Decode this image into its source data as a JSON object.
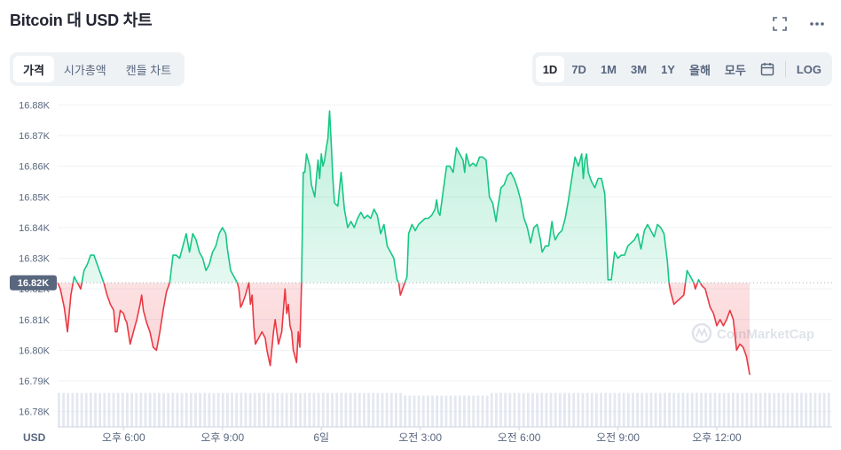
{
  "header": {
    "title": "Bitcoin 대 USD 차트"
  },
  "icons": {
    "fullscreen": "fullscreen-icon",
    "more": "more-icon",
    "calendar": "calendar-icon"
  },
  "tabs_left": [
    {
      "label": "가격",
      "active": true
    },
    {
      "label": "시가총액",
      "active": false
    },
    {
      "label": "캔들 차트",
      "active": false
    }
  ],
  "ranges": [
    {
      "label": "1D",
      "active": true
    },
    {
      "label": "7D",
      "active": false
    },
    {
      "label": "1M",
      "active": false
    },
    {
      "label": "3M",
      "active": false
    },
    {
      "label": "1Y",
      "active": false
    },
    {
      "label": "올해",
      "active": false
    },
    {
      "label": "모두",
      "active": false
    }
  ],
  "log_label": "LOG",
  "watermark": "CoinMarketCap",
  "colors": {
    "up": "#16c784",
    "down": "#ea3943",
    "grid": "#eff2f5",
    "text": "#58667e",
    "current_badge": "#58667e"
  },
  "chart_data": {
    "type": "line",
    "currency_label": "USD",
    "ylim": [
      16775,
      16883
    ],
    "yticks": [
      "16.88K",
      "16.87K",
      "16.86K",
      "16.85K",
      "16.84K",
      "16.83K",
      "16.82K",
      "16.81K",
      "16.80K",
      "16.79K",
      "16.78K"
    ],
    "ytick_values": [
      16880,
      16870,
      16860,
      16850,
      16840,
      16830,
      16820,
      16810,
      16800,
      16790,
      16780
    ],
    "baseline_label": "16.82K",
    "baseline": 16822,
    "x_labels": [
      "오후 6:00",
      "오후 9:00",
      "6일",
      "오전 3:00",
      "오전 6:00",
      "오전 9:00",
      "오후 12:00"
    ],
    "x_label_hours": [
      2,
      5,
      8,
      11,
      14,
      17,
      20
    ],
    "x_range_hours": [
      0,
      23.5
    ],
    "price_series": [
      [
        0.0,
        16822
      ],
      [
        0.08,
        16820
      ],
      [
        0.2,
        16814
      ],
      [
        0.3,
        16806
      ],
      [
        0.4,
        16818
      ],
      [
        0.5,
        16824
      ],
      [
        0.6,
        16822
      ],
      [
        0.7,
        16820
      ],
      [
        0.8,
        16826
      ],
      [
        0.9,
        16828
      ],
      [
        1.0,
        16831
      ],
      [
        1.1,
        16831
      ],
      [
        1.2,
        16828
      ],
      [
        1.3,
        16825
      ],
      [
        1.4,
        16822
      ],
      [
        1.5,
        16818
      ],
      [
        1.6,
        16815
      ],
      [
        1.7,
        16813
      ],
      [
        1.75,
        16806
      ],
      [
        1.8,
        16806
      ],
      [
        1.9,
        16813
      ],
      [
        2.0,
        16812
      ],
      [
        2.05,
        16810
      ],
      [
        2.1,
        16809
      ],
      [
        2.2,
        16802
      ],
      [
        2.3,
        16806
      ],
      [
        2.4,
        16810
      ],
      [
        2.5,
        16815
      ],
      [
        2.55,
        16818
      ],
      [
        2.6,
        16813
      ],
      [
        2.7,
        16809
      ],
      [
        2.8,
        16806
      ],
      [
        2.9,
        16801
      ],
      [
        3.0,
        16800
      ],
      [
        3.1,
        16806
      ],
      [
        3.2,
        16813
      ],
      [
        3.3,
        16819
      ],
      [
        3.4,
        16822
      ],
      [
        3.5,
        16831
      ],
      [
        3.6,
        16831
      ],
      [
        3.7,
        16830
      ],
      [
        3.8,
        16834
      ],
      [
        3.9,
        16838
      ],
      [
        4.0,
        16832
      ],
      [
        4.1,
        16838
      ],
      [
        4.2,
        16836
      ],
      [
        4.3,
        16832
      ],
      [
        4.4,
        16830
      ],
      [
        4.5,
        16826
      ],
      [
        4.6,
        16828
      ],
      [
        4.7,
        16832
      ],
      [
        4.8,
        16834
      ],
      [
        4.9,
        16838
      ],
      [
        5.0,
        16840
      ],
      [
        5.1,
        16838
      ],
      [
        5.15,
        16833
      ],
      [
        5.25,
        16826
      ],
      [
        5.35,
        16824
      ],
      [
        5.45,
        16822
      ],
      [
        5.5,
        16820
      ],
      [
        5.55,
        16814
      ],
      [
        5.6,
        16815
      ],
      [
        5.7,
        16818
      ],
      [
        5.8,
        16822
      ],
      [
        5.85,
        16815
      ],
      [
        5.9,
        16818
      ],
      [
        5.95,
        16808
      ],
      [
        6.0,
        16802
      ],
      [
        6.1,
        16804
      ],
      [
        6.2,
        16806
      ],
      [
        6.3,
        16804
      ],
      [
        6.35,
        16800
      ],
      [
        6.45,
        16795
      ],
      [
        6.55,
        16806
      ],
      [
        6.6,
        16810
      ],
      [
        6.7,
        16802
      ],
      [
        6.8,
        16806
      ],
      [
        6.9,
        16820
      ],
      [
        6.95,
        16812
      ],
      [
        7.0,
        16815
      ],
      [
        7.05,
        16808
      ],
      [
        7.1,
        16806
      ],
      [
        7.15,
        16800
      ],
      [
        7.2,
        16798
      ],
      [
        7.25,
        16796
      ],
      [
        7.3,
        16806
      ],
      [
        7.35,
        16801
      ],
      [
        7.4,
        16822
      ],
      [
        7.45,
        16858
      ],
      [
        7.5,
        16858
      ],
      [
        7.55,
        16864
      ],
      [
        7.6,
        16862
      ],
      [
        7.65,
        16860
      ],
      [
        7.7,
        16854
      ],
      [
        7.75,
        16852
      ],
      [
        7.8,
        16850
      ],
      [
        7.85,
        16856
      ],
      [
        7.9,
        16862
      ],
      [
        7.95,
        16856
      ],
      [
        8.0,
        16864
      ],
      [
        8.05,
        16860
      ],
      [
        8.1,
        16862
      ],
      [
        8.15,
        16866
      ],
      [
        8.2,
        16869
      ],
      [
        8.25,
        16878
      ],
      [
        8.3,
        16868
      ],
      [
        8.35,
        16856
      ],
      [
        8.4,
        16848
      ],
      [
        8.5,
        16847
      ],
      [
        8.6,
        16858
      ],
      [
        8.7,
        16846
      ],
      [
        8.8,
        16840
      ],
      [
        8.9,
        16842
      ],
      [
        9.0,
        16840
      ],
      [
        9.1,
        16843
      ],
      [
        9.2,
        16845
      ],
      [
        9.3,
        16843
      ],
      [
        9.4,
        16844
      ],
      [
        9.5,
        16843
      ],
      [
        9.6,
        16846
      ],
      [
        9.7,
        16844
      ],
      [
        9.8,
        16838
      ],
      [
        9.9,
        16841
      ],
      [
        10.0,
        16834
      ],
      [
        10.1,
        16832
      ],
      [
        10.2,
        16830
      ],
      [
        10.3,
        16823
      ],
      [
        10.35,
        16822
      ],
      [
        10.4,
        16818
      ],
      [
        10.5,
        16821
      ],
      [
        10.6,
        16824
      ],
      [
        10.65,
        16838
      ],
      [
        10.75,
        16841
      ],
      [
        10.85,
        16839
      ],
      [
        10.95,
        16841
      ],
      [
        11.05,
        16842
      ],
      [
        11.15,
        16843
      ],
      [
        11.25,
        16843
      ],
      [
        11.35,
        16844
      ],
      [
        11.45,
        16846
      ],
      [
        11.5,
        16849
      ],
      [
        11.55,
        16845
      ],
      [
        11.6,
        16844
      ],
      [
        11.7,
        16852
      ],
      [
        11.8,
        16860
      ],
      [
        11.9,
        16860
      ],
      [
        12.0,
        16858
      ],
      [
        12.1,
        16866
      ],
      [
        12.2,
        16864
      ],
      [
        12.3,
        16862
      ],
      [
        12.35,
        16858
      ],
      [
        12.4,
        16864
      ],
      [
        12.5,
        16860
      ],
      [
        12.6,
        16861
      ],
      [
        12.7,
        16860
      ],
      [
        12.8,
        16863
      ],
      [
        12.9,
        16863
      ],
      [
        13.0,
        16862
      ],
      [
        13.1,
        16850
      ],
      [
        13.2,
        16848
      ],
      [
        13.3,
        16842
      ],
      [
        13.35,
        16846
      ],
      [
        13.45,
        16853
      ],
      [
        13.55,
        16854
      ],
      [
        13.65,
        16857
      ],
      [
        13.75,
        16858
      ],
      [
        13.85,
        16856
      ],
      [
        13.95,
        16853
      ],
      [
        14.05,
        16849
      ],
      [
        14.15,
        16843
      ],
      [
        14.25,
        16840
      ],
      [
        14.35,
        16835
      ],
      [
        14.45,
        16840
      ],
      [
        14.55,
        16841
      ],
      [
        14.65,
        16836
      ],
      [
        14.7,
        16832
      ],
      [
        14.8,
        16834
      ],
      [
        14.9,
        16834
      ],
      [
        15.0,
        16842
      ],
      [
        15.05,
        16838
      ],
      [
        15.1,
        16836
      ],
      [
        15.2,
        16838
      ],
      [
        15.3,
        16839
      ],
      [
        15.4,
        16843
      ],
      [
        15.5,
        16849
      ],
      [
        15.6,
        16856
      ],
      [
        15.7,
        16863
      ],
      [
        15.8,
        16860
      ],
      [
        15.9,
        16864
      ],
      [
        15.95,
        16856
      ],
      [
        16.0,
        16862
      ],
      [
        16.05,
        16864
      ],
      [
        16.1,
        16858
      ],
      [
        16.2,
        16855
      ],
      [
        16.3,
        16853
      ],
      [
        16.4,
        16856
      ],
      [
        16.5,
        16856
      ],
      [
        16.6,
        16851
      ],
      [
        16.65,
        16839
      ],
      [
        16.7,
        16823
      ],
      [
        16.8,
        16823
      ],
      [
        16.9,
        16832
      ],
      [
        17.0,
        16830
      ],
      [
        17.1,
        16831
      ],
      [
        17.2,
        16831
      ],
      [
        17.3,
        16834
      ],
      [
        17.4,
        16835
      ],
      [
        17.5,
        16836
      ],
      [
        17.6,
        16838
      ],
      [
        17.7,
        16833
      ],
      [
        17.8,
        16839
      ],
      [
        17.9,
        16841
      ],
      [
        18.0,
        16839
      ],
      [
        18.1,
        16837
      ],
      [
        18.2,
        16841
      ],
      [
        18.3,
        16840
      ],
      [
        18.4,
        16838
      ],
      [
        18.5,
        16829
      ],
      [
        18.55,
        16822
      ],
      [
        18.6,
        16819
      ],
      [
        18.7,
        16815
      ],
      [
        18.8,
        16816
      ],
      [
        18.9,
        16817
      ],
      [
        19.0,
        16818
      ],
      [
        19.1,
        16826
      ],
      [
        19.2,
        16824
      ],
      [
        19.3,
        16822
      ],
      [
        19.35,
        16820
      ],
      [
        19.45,
        16823
      ],
      [
        19.55,
        16821
      ],
      [
        19.65,
        16820
      ],
      [
        19.7,
        16818
      ],
      [
        19.8,
        16814
      ],
      [
        19.9,
        16812
      ],
      [
        20.0,
        16808
      ],
      [
        20.1,
        16810
      ],
      [
        20.2,
        16808
      ],
      [
        20.3,
        16810
      ],
      [
        20.4,
        16813
      ],
      [
        20.5,
        16810
      ],
      [
        20.6,
        16800
      ],
      [
        20.7,
        16802
      ],
      [
        20.8,
        16801
      ],
      [
        20.9,
        16798
      ],
      [
        21.0,
        16792
      ],
      [
        21.0,
        16792
      ]
    ],
    "volume_level": 0.74
  }
}
